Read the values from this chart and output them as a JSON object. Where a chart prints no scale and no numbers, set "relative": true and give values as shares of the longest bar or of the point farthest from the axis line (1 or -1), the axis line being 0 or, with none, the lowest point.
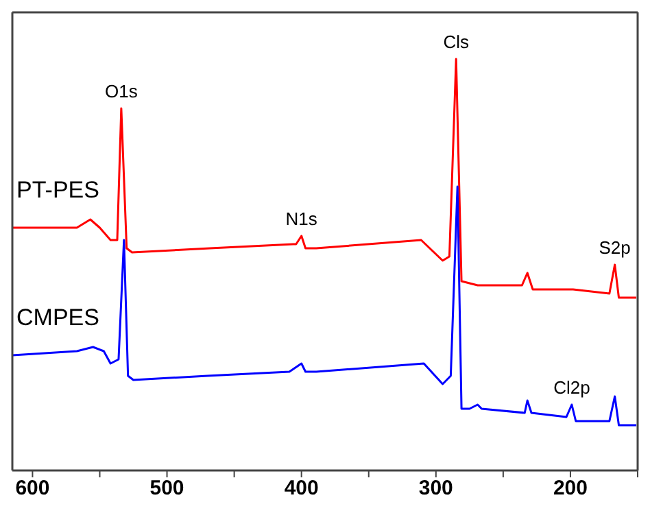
{
  "chart_data": {
    "type": "line",
    "relative": true,
    "xlim": [
      615,
      150
    ],
    "xticks": [
      600,
      {
        "value": 550,
        "label": null
      },
      500,
      {
        "value": 450,
        "label": null
      },
      400,
      {
        "value": 350,
        "label": null
      },
      300,
      {
        "value": 250,
        "label": null
      },
      200,
      {
        "value": 150,
        "label": null
      }
    ],
    "tick_labels": "x",
    "marker": "none",
    "line_style": "solid",
    "series": [
      {
        "name": "PT-PES",
        "color": "#ff0000",
        "x": [
          615,
          567,
          557,
          550,
          542,
          537,
          534,
          530,
          526,
          468,
          406,
          404,
          400,
          397,
          389,
          311,
          295,
          290,
          285,
          281,
          269,
          236,
          232,
          228,
          198,
          171,
          167,
          164,
          151
        ],
        "values": [
          0.59,
          0.59,
          0.61,
          0.59,
          0.56,
          0.56,
          0.88,
          0.54,
          0.53,
          0.54,
          0.55,
          0.55,
          0.57,
          0.54,
          0.54,
          0.56,
          0.51,
          0.52,
          1,
          0.46,
          0.45,
          0.45,
          0.48,
          0.44,
          0.44,
          0.43,
          0.5,
          0.42,
          0.42
        ]
      },
      {
        "name": "CMPES",
        "color": "#0000ff",
        "x": [
          615,
          567,
          555,
          547,
          542,
          536,
          532,
          529,
          525,
          470,
          409,
          400,
          397,
          389,
          309,
          295,
          289,
          284,
          281,
          275,
          269,
          266,
          234,
          232,
          229,
          203,
          199,
          196,
          171,
          167,
          164,
          151
        ],
        "values": [
          0.28,
          0.29,
          0.3,
          0.29,
          0.26,
          0.27,
          0.56,
          0.23,
          0.22,
          0.23,
          0.24,
          0.26,
          0.24,
          0.24,
          0.26,
          0.21,
          0.23,
          0.69,
          0.15,
          0.15,
          0.16,
          0.15,
          0.14,
          0.17,
          0.14,
          0.13,
          0.16,
          0.12,
          0.12,
          0.18,
          0.11,
          0.11
        ]
      }
    ],
    "annotations": [
      {
        "text": "O1s",
        "x": 534,
        "y": 0.88
      },
      {
        "text": "N1s",
        "x": 400,
        "y": 0.57
      },
      {
        "text": "Cls",
        "x": 285,
        "y": 1
      },
      {
        "text": "S2p",
        "x": 167,
        "y": 0.5
      },
      {
        "text": "Cl2p",
        "x": 199,
        "y": 0.16
      }
    ]
  }
}
